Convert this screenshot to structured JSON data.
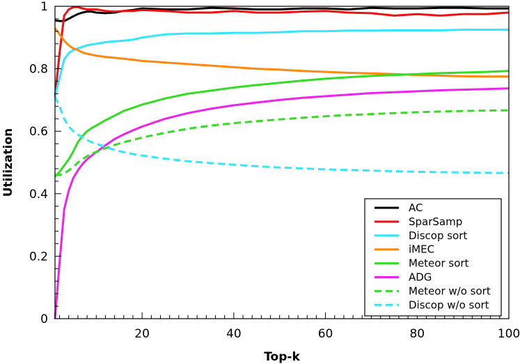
{
  "chart_data": {
    "type": "line",
    "title": "",
    "xlabel": "Top-k",
    "ylabel": "Utilization",
    "xlim": [
      1,
      100
    ],
    "ylim": [
      0,
      1
    ],
    "x_ticks": [
      20,
      40,
      60,
      80,
      100
    ],
    "y_ticks": [
      0,
      0.2,
      0.4,
      0.6,
      0.8,
      1
    ],
    "x_tick_labels": [
      "20",
      "40",
      "60",
      "80",
      "100"
    ],
    "y_tick_labels": [
      "0",
      "0.2",
      "0.4",
      "0.6",
      "0.8",
      "1"
    ],
    "grid": false,
    "legend_position": "bottom-right",
    "x": [
      1,
      2,
      3,
      4,
      5,
      6,
      7,
      8,
      9,
      10,
      12,
      14,
      16,
      18,
      20,
      25,
      30,
      35,
      40,
      45,
      50,
      55,
      60,
      65,
      70,
      75,
      80,
      85,
      90,
      95,
      100
    ],
    "series": [
      {
        "name": "AC",
        "color": "#000000",
        "dash": "solid",
        "values": [
          0.955,
          0.953,
          0.953,
          0.96,
          0.968,
          0.975,
          0.98,
          0.983,
          0.983,
          0.98,
          0.978,
          0.98,
          0.985,
          0.988,
          0.993,
          0.99,
          0.99,
          0.995,
          0.993,
          0.99,
          0.99,
          0.993,
          0.993,
          0.99,
          0.995,
          0.993,
          0.993,
          0.995,
          0.995,
          0.993,
          0.993
        ]
      },
      {
        "name": "SparSamp",
        "color": "#ee1111",
        "dash": "solid",
        "values": [
          0.71,
          0.85,
          0.97,
          0.99,
          0.997,
          0.997,
          0.993,
          0.99,
          0.99,
          0.99,
          0.985,
          0.983,
          0.985,
          0.985,
          0.988,
          0.985,
          0.98,
          0.98,
          0.985,
          0.98,
          0.98,
          0.983,
          0.985,
          0.98,
          0.978,
          0.97,
          0.975,
          0.97,
          0.975,
          0.975,
          0.98
        ]
      },
      {
        "name": "Discop sort",
        "color": "#33e6ff",
        "dash": "solid",
        "values": [
          0.71,
          0.77,
          0.83,
          0.85,
          0.86,
          0.865,
          0.87,
          0.875,
          0.878,
          0.88,
          0.885,
          0.888,
          0.89,
          0.893,
          0.9,
          0.91,
          0.913,
          0.913,
          0.915,
          0.915,
          0.917,
          0.92,
          0.92,
          0.922,
          0.922,
          0.923,
          0.923,
          0.923,
          0.925,
          0.925,
          0.925
        ]
      },
      {
        "name": "iMEC",
        "color": "#ff8811",
        "dash": "solid",
        "values": [
          0.93,
          0.91,
          0.89,
          0.875,
          0.865,
          0.86,
          0.852,
          0.848,
          0.845,
          0.842,
          0.838,
          0.835,
          0.832,
          0.829,
          0.825,
          0.82,
          0.815,
          0.81,
          0.805,
          0.8,
          0.797,
          0.793,
          0.79,
          0.787,
          0.785,
          0.783,
          0.78,
          0.778,
          0.776,
          0.775,
          0.775
        ]
      },
      {
        "name": "Meteor sort",
        "color": "#33dd22",
        "dash": "solid",
        "values": [
          0.455,
          0.47,
          0.49,
          0.51,
          0.535,
          0.565,
          0.585,
          0.6,
          0.61,
          0.618,
          0.635,
          0.65,
          0.665,
          0.675,
          0.685,
          0.705,
          0.72,
          0.73,
          0.74,
          0.748,
          0.755,
          0.762,
          0.768,
          0.773,
          0.777,
          0.78,
          0.783,
          0.786,
          0.788,
          0.79,
          0.793
        ]
      },
      {
        "name": "ADG",
        "color": "#ee22ee",
        "dash": "solid",
        "values": [
          0.0,
          0.18,
          0.35,
          0.41,
          0.45,
          0.475,
          0.495,
          0.51,
          0.522,
          0.533,
          0.555,
          0.575,
          0.59,
          0.603,
          0.615,
          0.64,
          0.658,
          0.672,
          0.683,
          0.692,
          0.7,
          0.707,
          0.712,
          0.717,
          0.722,
          0.725,
          0.728,
          0.731,
          0.733,
          0.735,
          0.737
        ]
      },
      {
        "name": "Meteor w/o sort",
        "color": "#33dd22",
        "dash": "dashed",
        "values": [
          0.46,
          0.46,
          0.465,
          0.475,
          0.485,
          0.5,
          0.51,
          0.52,
          0.528,
          0.534,
          0.545,
          0.556,
          0.565,
          0.572,
          0.58,
          0.595,
          0.608,
          0.618,
          0.626,
          0.632,
          0.638,
          0.643,
          0.648,
          0.652,
          0.655,
          0.658,
          0.661,
          0.663,
          0.665,
          0.666,
          0.667
        ]
      },
      {
        "name": "Discop w/o sort",
        "color": "#33e6ff",
        "dash": "dashed",
        "values": [
          0.71,
          0.68,
          0.64,
          0.615,
          0.6,
          0.59,
          0.58,
          0.572,
          0.565,
          0.56,
          0.55,
          0.54,
          0.533,
          0.527,
          0.522,
          0.512,
          0.504,
          0.498,
          0.493,
          0.488,
          0.484,
          0.481,
          0.478,
          0.476,
          0.474,
          0.472,
          0.47,
          0.469,
          0.468,
          0.467,
          0.466
        ]
      }
    ]
  }
}
